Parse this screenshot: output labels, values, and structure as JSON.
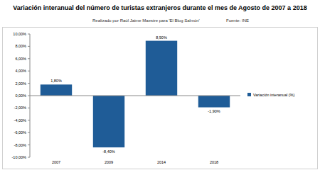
{
  "chart_data": {
    "type": "bar",
    "title": "Variación interanual del número de turistas extranjeros durante el mes de Agosto de 2007 a 2018",
    "subtitle": "Realizado por Raúl Jaime Maestre para 'El Blog Salmón'",
    "annotations": [
      "Fuente: INE"
    ],
    "categories": [
      "2007",
      "2009",
      "2014",
      "2018"
    ],
    "series": [
      {
        "name": "Variación interanual (%)",
        "color": "#1f5c97",
        "values": [
          1.8,
          -8.4,
          8.9,
          -1.9
        ],
        "value_labels": [
          "1,80%",
          "-8,40%",
          "8,90%",
          "-1,90%"
        ]
      }
    ],
    "ylim": [
      -10,
      10
    ],
    "yticks": [
      {
        "value": -10,
        "label": "-10,00%"
      },
      {
        "value": -8,
        "label": "-8,00%"
      },
      {
        "value": -6,
        "label": "-6,00%"
      },
      {
        "value": -4,
        "label": "-4,00%"
      },
      {
        "value": -2,
        "label": "-2,00%"
      },
      {
        "value": 0,
        "label": "0,00%"
      },
      {
        "value": 2,
        "label": "2,00%"
      },
      {
        "value": 4,
        "label": "4,00%"
      },
      {
        "value": 6,
        "label": "6,00%"
      },
      {
        "value": 8,
        "label": "8,00%"
      },
      {
        "value": 10,
        "label": "10,00%"
      }
    ],
    "grid": false,
    "legend": "right",
    "data_labels": true
  }
}
